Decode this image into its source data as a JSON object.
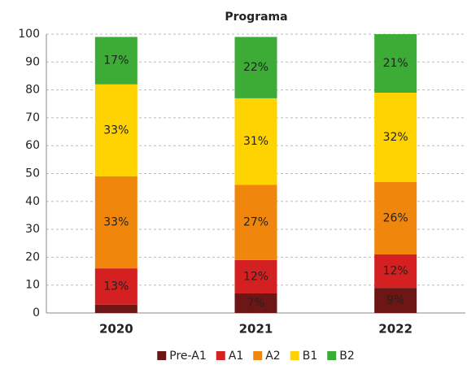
{
  "chart_data": {
    "type": "stacked_bar",
    "title": "Programa",
    "categories": [
      "2020",
      "2021",
      "2022"
    ],
    "series": [
      {
        "name": "Pre-A1",
        "color": "#6e1515",
        "values": [
          3,
          7,
          9
        ],
        "value_labels": [
          null,
          "7%",
          "9%"
        ]
      },
      {
        "name": "A1",
        "color": "#d42020",
        "values": [
          13,
          12,
          12
        ],
        "value_labels": [
          "13%",
          "12%",
          "12%"
        ]
      },
      {
        "name": "A2",
        "color": "#f0870c",
        "values": [
          33,
          27,
          26
        ],
        "value_labels": [
          "33%",
          "27%",
          "26%"
        ]
      },
      {
        "name": "B1",
        "color": "#ffd300",
        "values": [
          33,
          31,
          32
        ],
        "value_labels": [
          "33%",
          "31%",
          "32%"
        ]
      },
      {
        "name": "B2",
        "color": "#3cac37",
        "values": [
          17,
          22,
          21
        ],
        "value_labels": [
          "17%",
          "22%",
          "21%"
        ]
      }
    ],
    "ylim": [
      0,
      100
    ],
    "yticks": [
      0,
      10,
      20,
      30,
      40,
      50,
      60,
      70,
      80,
      90,
      100
    ],
    "grid": true,
    "legend": "bottom"
  }
}
